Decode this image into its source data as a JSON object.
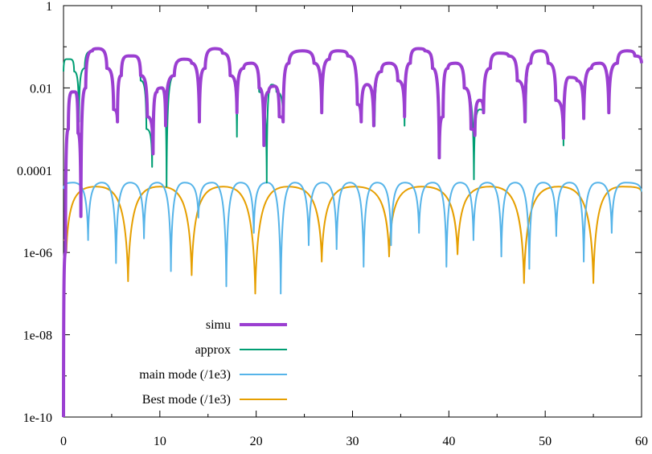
{
  "chart_data": {
    "type": "line",
    "title": "",
    "xlabel": "",
    "ylabel": "",
    "xlim": [
      0,
      60
    ],
    "ylim": [
      1e-10,
      1
    ],
    "y_scale": "log",
    "grid": false,
    "legend_position": "bottom-left",
    "x_ticks": [
      0,
      10,
      20,
      30,
      40,
      50,
      60
    ],
    "x_tick_labels": [
      "0",
      "10",
      "20",
      "30",
      "40",
      "50",
      "60"
    ],
    "y_ticks": [
      1e-10,
      1e-08,
      1e-06,
      0.0001,
      0.01,
      1
    ],
    "y_tick_labels": [
      "1e-10",
      "1e-08",
      "1e-06",
      "0.0001",
      "0.01",
      "1"
    ],
    "series": [
      {
        "name": "simu",
        "color": "#9b3fd1",
        "line_width": "thick",
        "x": [
          0.0,
          0.2,
          0.5,
          0.9,
          1.2,
          1.5,
          1.8,
          2.3,
          3.0,
          3.6,
          4.5,
          5.2,
          5.6,
          6.0,
          6.7,
          7.3,
          8.0,
          8.7,
          9.3,
          9.7,
          10.2,
          10.6,
          11.5,
          12.5,
          13.3,
          14.1,
          14.7,
          15.7,
          16.5,
          17.3,
          18.0,
          18.7,
          19.5,
          20.3,
          20.8,
          21.3,
          21.9,
          22.4,
          22.8,
          23.4,
          24.8,
          26.0,
          26.8,
          27.6,
          28.5,
          29.5,
          30.5,
          30.9,
          31.5,
          32.2,
          33.0,
          33.8,
          34.7,
          35.4,
          36.0,
          36.8,
          37.5,
          38.3,
          39.0,
          39.4,
          39.9,
          40.7,
          41.6,
          42.3,
          42.7,
          43.2,
          43.6,
          44.3,
          45.2,
          46.2,
          47.1,
          47.9,
          48.5,
          49.5,
          50.3,
          51.1,
          51.9,
          52.5,
          53.3,
          54.0,
          54.8,
          55.7,
          56.6,
          57.5,
          58.5,
          59.3,
          60.0
        ],
        "y": [
          1e-10,
          1e-06,
          0.001,
          0.008,
          0.008,
          0.0008,
          7.5e-06,
          0.01,
          0.08,
          0.09,
          0.03,
          0.003,
          0.0015,
          0.02,
          0.06,
          0.06,
          0.02,
          0.002,
          0.00025,
          0.008,
          0.01,
          0.0012,
          0.02,
          0.05,
          0.04,
          0.0015,
          0.03,
          0.09,
          0.07,
          0.02,
          0.0025,
          0.03,
          0.04,
          0.01,
          0.0004,
          0.008,
          0.011,
          0.002,
          0.0015,
          0.04,
          0.08,
          0.04,
          0.0025,
          0.05,
          0.08,
          0.06,
          0.004,
          0.0015,
          0.012,
          0.0012,
          0.025,
          0.04,
          0.015,
          0.002,
          0.04,
          0.09,
          0.08,
          0.03,
          0.0002,
          0.002,
          0.03,
          0.04,
          0.01,
          0.001,
          0.0007,
          0.005,
          0.0025,
          0.03,
          0.07,
          0.06,
          0.015,
          0.0015,
          0.04,
          0.08,
          0.04,
          0.005,
          0.0006,
          0.018,
          0.015,
          0.0018,
          0.03,
          0.04,
          0.0025,
          0.04,
          0.08,
          0.06,
          0.04
        ]
      },
      {
        "name": "approx",
        "color": "#009e73",
        "line_width": "normal",
        "x": [
          0.0,
          0.3,
          0.7,
          1.1,
          1.6,
          2.2,
          3.0,
          3.6,
          4.5,
          5.2,
          5.6,
          6.0,
          6.7,
          7.3,
          8.0,
          8.6,
          9.2,
          9.7,
          10.2,
          10.7,
          11.5,
          12.5,
          13.3,
          14.1,
          14.7,
          15.7,
          16.5,
          17.3,
          18.0,
          18.7,
          19.5,
          20.3,
          21.1,
          21.6,
          22.1,
          22.8,
          23.4,
          24.8,
          26.0,
          26.8,
          27.6,
          28.5,
          29.5,
          30.5,
          30.9,
          31.5,
          32.3,
          33.0,
          33.8,
          34.7,
          35.4,
          36.0,
          36.8,
          37.5,
          38.3,
          39.0,
          39.4,
          39.9,
          40.7,
          41.6,
          42.6,
          43.2,
          43.6,
          44.3,
          45.2,
          46.2,
          47.1,
          48.0,
          48.5,
          49.5,
          50.3,
          51.1,
          51.9,
          52.5,
          53.3,
          54.0,
          54.8,
          55.7,
          56.6,
          57.5,
          58.5,
          59.3,
          60.0
        ],
        "y": [
          0.025,
          0.05,
          0.05,
          0.025,
          0.0015,
          0.03,
          0.08,
          0.09,
          0.03,
          0.003,
          0.0015,
          0.02,
          0.06,
          0.06,
          0.015,
          0.001,
          0.00012,
          0.008,
          0.01,
          4e-05,
          0.02,
          0.05,
          0.04,
          0.0015,
          0.03,
          0.09,
          0.07,
          0.02,
          0.00065,
          0.03,
          0.04,
          0.008,
          5e-05,
          0.012,
          0.008,
          0.0015,
          0.04,
          0.08,
          0.04,
          0.0035,
          0.05,
          0.08,
          0.06,
          0.004,
          0.0015,
          0.012,
          0.0012,
          0.025,
          0.04,
          0.015,
          0.0012,
          0.04,
          0.09,
          0.08,
          0.03,
          0.0005,
          0.002,
          0.03,
          0.04,
          0.01,
          6e-05,
          0.003,
          0.0025,
          0.03,
          0.07,
          0.06,
          0.015,
          0.0015,
          0.04,
          0.08,
          0.04,
          0.005,
          0.0004,
          0.018,
          0.015,
          0.0018,
          0.03,
          0.04,
          0.0025,
          0.04,
          0.08,
          0.06,
          0.04
        ]
      },
      {
        "name": "main mode (/1e3)",
        "color": "#56b4e9",
        "line_width": "normal",
        "peak": 5e-05,
        "zero_depth": [
          2e-06,
          1.7e-06,
          5.5e-07,
          2.2e-06,
          7e-06,
          3.5e-07,
          6.5e-07,
          1.5e-07,
          3e-06,
          1e-07,
          1.5e-06,
          1.2e-06,
          4.5e-07,
          1.5e-06,
          3e-06,
          4.5e-07,
          2e-06,
          8e-07,
          4e-07,
          2.5e-06,
          6e-07,
          3e-06,
          1.2e-06,
          5e-06
        ],
        "x": [
          0.0,
          1.0,
          2.55,
          4.0,
          5.45,
          6.9,
          8.35,
          9.75,
          11.15,
          12.55,
          14.0,
          15.45,
          16.9,
          18.35,
          19.75,
          21.15,
          22.55,
          24.0,
          25.45,
          26.9,
          28.35,
          29.75,
          31.15,
          32.55,
          34.0,
          35.45,
          36.9,
          38.35,
          39.75,
          41.15,
          42.55,
          44.0,
          45.45,
          46.9,
          48.35,
          49.75,
          51.15,
          52.55,
          54.0,
          55.45,
          56.9,
          58.35,
          60.0
        ],
        "y": [
          3.5e-05,
          5e-05,
          2e-06,
          5e-05,
          5.5e-07,
          5e-05,
          2.2e-06,
          5e-05,
          3.5e-07,
          5e-05,
          7e-06,
          5e-05,
          1.5e-07,
          5e-05,
          3e-06,
          5e-05,
          1e-07,
          5e-05,
          1.5e-06,
          5e-05,
          1.2e-06,
          5e-05,
          4.5e-07,
          5e-05,
          1.5e-06,
          5e-05,
          3e-06,
          5e-05,
          4.5e-07,
          5e-05,
          2e-06,
          5e-05,
          8e-07,
          5e-05,
          4e-07,
          5e-05,
          2.5e-06,
          5e-05,
          6e-07,
          5e-05,
          3e-06,
          5e-05,
          3e-05
        ]
      },
      {
        "name": "Best mode (/1e3)",
        "color": "#e69f00",
        "line_width": "normal",
        "x": [
          0.0,
          0.3,
          3.4,
          6.7,
          10.0,
          13.3,
          16.6,
          19.9,
          23.3,
          26.8,
          30.2,
          33.8,
          37.2,
          40.9,
          44.3,
          47.8,
          51.4,
          55.0,
          58.0,
          60.0
        ],
        "y": [
          2e-06,
          1e-06,
          4e-05,
          2e-07,
          4e-05,
          2.8e-07,
          4e-05,
          1e-07,
          4e-05,
          6e-07,
          4e-05,
          8e-07,
          4e-05,
          9e-07,
          4e-05,
          1.8e-07,
          4e-05,
          1.8e-07,
          4e-05,
          3e-05
        ]
      }
    ]
  }
}
